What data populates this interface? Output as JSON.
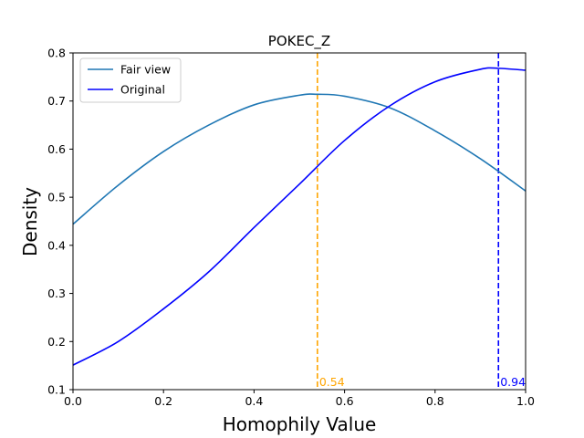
{
  "chart_data": {
    "type": "line",
    "title": "POKEC_Z",
    "xlabel": "Homophily Value",
    "ylabel": "Density",
    "xlim": [
      0,
      1
    ],
    "ylim": [
      0.1,
      0.8
    ],
    "xticks": [
      "0.0",
      "0.2",
      "0.4",
      "0.6",
      "0.8",
      "1.0"
    ],
    "yticks": [
      "0.1",
      "0.2",
      "0.3",
      "0.4",
      "0.5",
      "0.6",
      "0.7",
      "0.8"
    ],
    "grid": false,
    "legend_position": "top-left",
    "series": [
      {
        "name": "Fair view",
        "color": "#1f77b4",
        "x": [
          0.0,
          0.1,
          0.2,
          0.3,
          0.4,
          0.5,
          0.54,
          0.6,
          0.7,
          0.8,
          0.9,
          1.0
        ],
        "y": [
          0.444,
          0.525,
          0.595,
          0.65,
          0.692,
          0.712,
          0.714,
          0.71,
          0.686,
          0.638,
          0.58,
          0.513
        ]
      },
      {
        "name": "Original",
        "color": "#0000ff",
        "x": [
          0.0,
          0.1,
          0.2,
          0.3,
          0.4,
          0.5,
          0.6,
          0.7,
          0.8,
          0.9,
          0.94,
          1.0
        ],
        "y": [
          0.151,
          0.2,
          0.268,
          0.345,
          0.437,
          0.527,
          0.618,
          0.69,
          0.74,
          0.766,
          0.768,
          0.764
        ]
      }
    ],
    "vlines": [
      {
        "x": 0.54,
        "label": "0.54",
        "color": "#ffa500"
      },
      {
        "x": 0.94,
        "label": "0.94",
        "color": "#0000ff"
      }
    ]
  }
}
